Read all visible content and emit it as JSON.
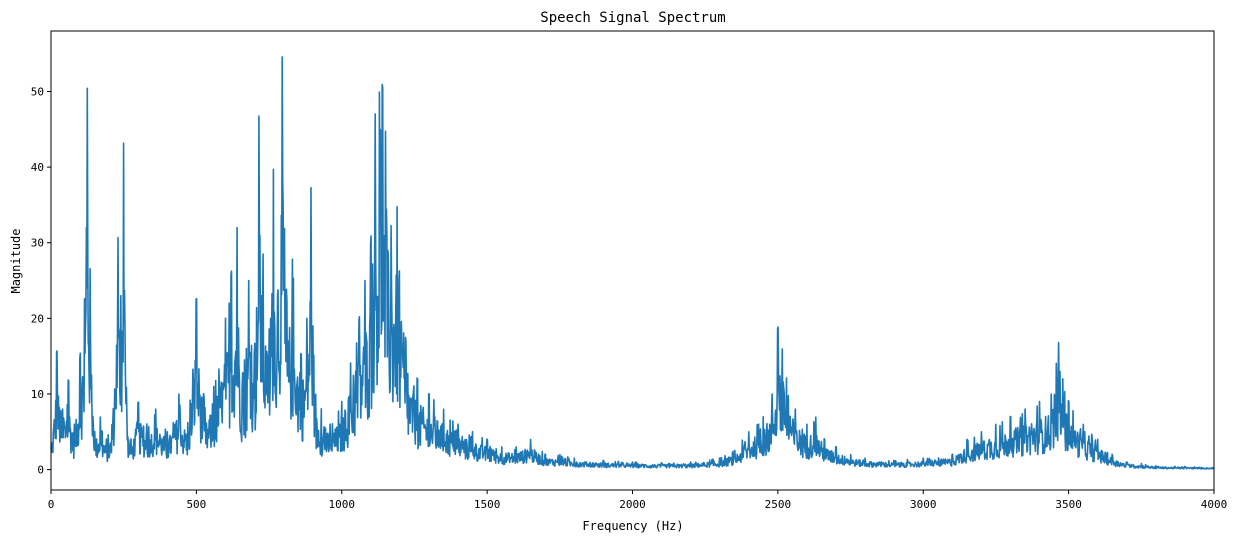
{
  "chart_data": {
    "type": "line",
    "title": "Speech Signal Spectrum",
    "xlabel": "Frequency (Hz)",
    "ylabel": "Magnitude",
    "xlim": [
      0,
      4000
    ],
    "ylim": [
      -2.7,
      58
    ],
    "xticks": [
      0,
      500,
      1000,
      1500,
      2000,
      2500,
      3000,
      3500,
      4000
    ],
    "yticks": [
      0,
      10,
      20,
      30,
      40,
      50
    ],
    "grid": false,
    "line_color": "#1f77b4",
    "series": [
      {
        "x": [
          0,
          20,
          40,
          60,
          80,
          100,
          115,
          125,
          135,
          150,
          170,
          190,
          210,
          230,
          240,
          250,
          260,
          275,
          300,
          330,
          360,
          400,
          440,
          470,
          500,
          530,
          560,
          600,
          620,
          640,
          660,
          680,
          700,
          715,
          730,
          750,
          765,
          780,
          795,
          810,
          830,
          860,
          880,
          895,
          910,
          930,
          960,
          1000,
          1030,
          1060,
          1080,
          1100,
          1115,
          1130,
          1140,
          1150,
          1170,
          1190,
          1220,
          1260,
          1300,
          1350,
          1400,
          1450,
          1500,
          1550,
          1600,
          1650,
          1700,
          1750,
          1800,
          1900,
          2000,
          2100,
          2200,
          2300,
          2350,
          2400,
          2450,
          2480,
          2500,
          2515,
          2530,
          2560,
          2600,
          2630,
          2660,
          2700,
          2750,
          2800,
          2900,
          3000,
          3100,
          3150,
          3200,
          3250,
          3300,
          3350,
          3400,
          3440,
          3465,
          3480,
          3500,
          3550,
          3600,
          3650,
          3700,
          3750,
          3800,
          3900,
          4000
        ],
        "values": [
          3,
          16,
          8,
          12,
          6,
          15,
          22,
          51,
          25,
          5,
          7,
          4,
          6,
          31,
          23,
          44,
          8,
          4,
          9,
          6,
          8,
          5,
          10,
          6,
          23,
          8,
          11,
          20,
          26,
          32,
          12,
          25,
          15,
          47,
          28,
          18,
          40,
          22,
          55,
          23,
          28,
          15,
          20,
          38,
          10,
          8,
          6,
          9,
          14,
          20,
          25,
          30,
          47,
          50,
          51,
          45,
          32,
          35,
          17,
          12,
          10,
          8,
          6,
          5,
          4,
          3,
          3,
          4,
          2,
          2,
          1.5,
          1.2,
          1,
          0.9,
          1,
          1.5,
          2.5,
          5,
          7,
          10,
          19,
          16,
          12,
          8,
          6,
          7,
          4,
          3,
          2,
          1.5,
          1.2,
          1.5,
          2,
          4,
          5,
          6,
          7,
          8,
          9,
          10,
          17,
          12,
          9,
          6,
          4,
          2,
          1,
          0.8,
          0.5,
          0.4,
          0.3
        ]
      }
    ]
  }
}
